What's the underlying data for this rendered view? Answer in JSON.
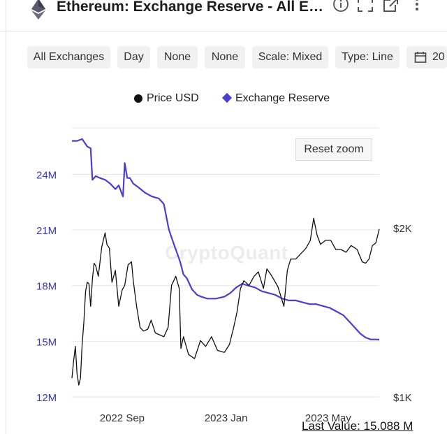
{
  "header": {
    "title": "Ethereum: Exchange Reserve - All Exchanges",
    "icons": [
      "ethereum-logo-icon",
      "info-icon",
      "fullscreen-icon",
      "external-link-icon",
      "more-vertical-icon"
    ]
  },
  "toolbar": {
    "chips": [
      {
        "label": "All Exchanges"
      },
      {
        "label": "Day"
      },
      {
        "label": "None"
      },
      {
        "label": "None"
      },
      {
        "label": "Scale: Mixed"
      },
      {
        "label": "Type: Line"
      },
      {
        "label": "20",
        "icon": "calendar-icon"
      }
    ]
  },
  "reset_zoom_label": "Reset zoom",
  "watermark": "CryptoQuant",
  "last_value": "Last Value: 15.088 M",
  "colors": {
    "reserve": "#4a3fd0",
    "price": "#111111"
  },
  "chart_data": {
    "type": "line",
    "legend": [
      {
        "name": "Price USD",
        "color": "#111111",
        "marker": "circle"
      },
      {
        "name": "Exchange Reserve",
        "color": "#4a3fd0",
        "marker": "diamond"
      }
    ],
    "legend_position": "top-center",
    "grid": true,
    "x_range": [
      "2022-07-04",
      "2023-06-30"
    ],
    "x_ticks": [
      {
        "date": "2022-09-01",
        "label": "2022 Sep"
      },
      {
        "date": "2023-01-01",
        "label": "2023 Jan"
      },
      {
        "date": "2023-05-01",
        "label": "2023 May"
      }
    ],
    "y_left": {
      "ticks": [
        "12M",
        "15M",
        "18M",
        "21M",
        "24M"
      ],
      "range": [
        12,
        26.5
      ],
      "unit": "M"
    },
    "y_right": {
      "ticks": [
        "$1K",
        "$2K"
      ],
      "scale": "log",
      "range": [
        1000,
        2000
      ]
    },
    "series": [
      {
        "name": "Exchange Reserve",
        "axis": "left",
        "x": [
          "2022-07-04",
          "2022-07-10",
          "2022-07-16",
          "2022-07-22",
          "2022-07-26",
          "2022-07-28",
          "2022-08-01",
          "2022-08-06",
          "2022-08-12",
          "2022-08-18",
          "2022-08-24",
          "2022-08-28",
          "2022-09-02",
          "2022-09-04",
          "2022-09-07",
          "2022-09-10",
          "2022-09-14",
          "2022-09-20",
          "2022-09-28",
          "2022-10-06",
          "2022-10-14",
          "2022-10-20",
          "2022-10-26",
          "2022-11-01",
          "2022-11-08",
          "2022-11-12",
          "2022-11-16",
          "2022-11-22",
          "2022-11-28",
          "2022-12-03",
          "2022-12-10",
          "2022-12-20",
          "2022-12-30",
          "2023-01-06",
          "2023-01-13",
          "2023-01-20",
          "2023-01-27",
          "2023-02-04",
          "2023-02-12",
          "2023-02-20",
          "2023-02-28",
          "2023-03-08",
          "2023-03-16",
          "2023-03-24",
          "2023-04-01",
          "2023-04-09",
          "2023-04-17",
          "2023-04-25",
          "2023-05-03",
          "2023-05-11",
          "2023-05-19",
          "2023-05-27",
          "2023-06-02",
          "2023-06-08",
          "2023-06-14",
          "2023-06-20",
          "2023-06-26",
          "2023-06-30"
        ],
        "values": [
          25.8,
          25.8,
          25.9,
          25.5,
          25.4,
          23.7,
          23.9,
          23.8,
          23.7,
          23.5,
          23.2,
          23.4,
          22.8,
          24.6,
          23.8,
          23.8,
          23.5,
          23.3,
          23.0,
          22.8,
          22.7,
          22.4,
          21.0,
          20.2,
          19.3,
          18.6,
          18.4,
          17.8,
          17.5,
          17.4,
          17.3,
          17.3,
          17.4,
          17.6,
          17.9,
          18.1,
          18.0,
          17.9,
          17.7,
          17.6,
          17.5,
          17.3,
          17.2,
          17.2,
          17.1,
          17.0,
          17.0,
          16.9,
          16.8,
          16.6,
          16.4,
          16.0,
          15.7,
          15.4,
          15.2,
          15.1,
          15.1,
          15.088
        ]
      },
      {
        "name": "Price USD",
        "axis": "right",
        "x": [
          "2022-07-04",
          "2022-07-06",
          "2022-07-08",
          "2022-07-10",
          "2022-07-12",
          "2022-07-14",
          "2022-07-16",
          "2022-07-18",
          "2022-07-20",
          "2022-07-22",
          "2022-07-24",
          "2022-07-26",
          "2022-07-28",
          "2022-07-30",
          "2022-08-01",
          "2022-08-04",
          "2022-08-08",
          "2022-08-12",
          "2022-08-14",
          "2022-08-17",
          "2022-08-20",
          "2022-08-24",
          "2022-08-28",
          "2022-09-01",
          "2022-09-04",
          "2022-09-08",
          "2022-09-12",
          "2022-09-14",
          "2022-09-18",
          "2022-09-22",
          "2022-09-26",
          "2022-10-01",
          "2022-10-05",
          "2022-10-10",
          "2022-10-15",
          "2022-10-20",
          "2022-10-25",
          "2022-10-29",
          "2022-11-03",
          "2022-11-07",
          "2022-11-09",
          "2022-11-12",
          "2022-11-18",
          "2022-11-25",
          "2022-12-02",
          "2022-12-08",
          "2022-12-15",
          "2022-12-22",
          "2022-12-30",
          "2023-01-05",
          "2023-01-10",
          "2023-01-14",
          "2023-01-18",
          "2023-01-22",
          "2023-01-28",
          "2023-02-03",
          "2023-02-08",
          "2023-02-14",
          "2023-02-18",
          "2023-02-24",
          "2023-03-03",
          "2023-03-10",
          "2023-03-14",
          "2023-03-18",
          "2023-03-24",
          "2023-03-30",
          "2023-04-05",
          "2023-04-10",
          "2023-04-14",
          "2023-04-18",
          "2023-04-22",
          "2023-04-28",
          "2023-05-04",
          "2023-05-10",
          "2023-05-16",
          "2023-05-22",
          "2023-05-28",
          "2023-06-04",
          "2023-06-10",
          "2023-06-14",
          "2023-06-18",
          "2023-06-22",
          "2023-06-26",
          "2023-06-30"
        ],
        "values": [
          1080,
          1160,
          1230,
          1100,
          1050,
          1080,
          1240,
          1360,
          1540,
          1600,
          1590,
          1450,
          1620,
          1730,
          1710,
          1640,
          1850,
          1960,
          1870,
          1840,
          1600,
          1680,
          1450,
          1550,
          1580,
          1720,
          1740,
          1610,
          1450,
          1330,
          1310,
          1320,
          1370,
          1300,
          1290,
          1280,
          1330,
          1580,
          1640,
          1560,
          1220,
          1280,
          1190,
          1170,
          1260,
          1230,
          1280,
          1210,
          1200,
          1240,
          1330,
          1420,
          1560,
          1610,
          1580,
          1640,
          1670,
          1560,
          1690,
          1640,
          1570,
          1450,
          1680,
          1760,
          1760,
          1800,
          1840,
          1900,
          2080,
          1940,
          1870,
          1900,
          1900,
          1830,
          1830,
          1810,
          1860,
          1830,
          1740,
          1730,
          1760,
          1860,
          1880,
          1990
        ]
      }
    ]
  }
}
